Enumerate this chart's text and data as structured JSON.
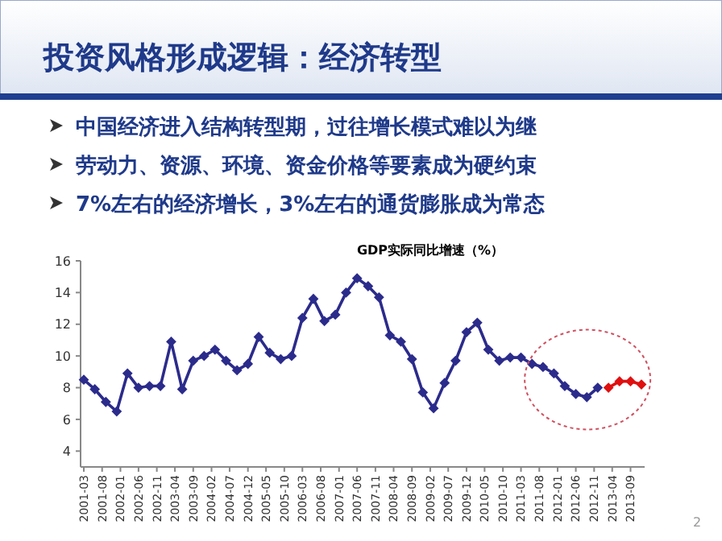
{
  "chart_data": {
    "type": "line",
    "title": "GDP实际同比增速（%）",
    "annotations": [
      "投资风格形成逻辑：经济转型",
      "中国经济进入结构转型期，过往增长模式难以为继",
      "劳动力、资源、环境、资金价格等要素成为硬约束",
      "7%左右的经济增长，3%左右的通货膨胀成为常态",
      "2"
    ],
    "series": [
      {
        "color": "#2b2b8c",
        "x": [
          "2001-03",
          "2001-06",
          "2001-09",
          "2001-12",
          "2002-03",
          "2002-06",
          "2002-09",
          "2002-12",
          "2003-03",
          "2003-06",
          "2003-09",
          "2003-12",
          "2004-03",
          "2004-06",
          "2004-09",
          "2004-12",
          "2005-03",
          "2005-06",
          "2005-09",
          "2005-12",
          "2006-03",
          "2006-06",
          "2006-09",
          "2006-12",
          "2007-03",
          "2007-06",
          "2007-09",
          "2007-12",
          "2008-03",
          "2008-06",
          "2008-09",
          "2008-12",
          "2009-03",
          "2009-06",
          "2009-09",
          "2009-12",
          "2010-03",
          "2010-06",
          "2010-09",
          "2010-12",
          "2011-03",
          "2011-06",
          "2011-09",
          "2011-12",
          "2012-03",
          "2012-06",
          "2012-09",
          "2012-12"
        ],
        "values": [
          8.5,
          7.9,
          7.1,
          6.5,
          8.9,
          8.0,
          8.1,
          8.1,
          10.9,
          7.9,
          9.7,
          10.0,
          10.4,
          9.7,
          9.1,
          9.5,
          11.2,
          10.2,
          9.8,
          10.0,
          12.4,
          13.6,
          12.2,
          12.6,
          14.0,
          14.9,
          14.4,
          13.7,
          11.3,
          10.9,
          9.8,
          7.7,
          6.7,
          8.3,
          9.7,
          11.5,
          12.1,
          10.4,
          9.7,
          9.9,
          9.9,
          9.5,
          9.3,
          8.9,
          8.1,
          7.6,
          7.4,
          8.0
        ]
      },
      {
        "color": "#e01010",
        "x": [
          "2013-03",
          "2013-06",
          "2013-09",
          "2013-12"
        ],
        "values": [
          8.0,
          8.4,
          8.4,
          8.2
        ]
      }
    ],
    "xlim": [
      "2001-03",
      "2013-12"
    ],
    "xticks": [
      "2001-03",
      "2001-08",
      "2002-01",
      "2002-06",
      "2002-11",
      "2003-04",
      "2003-09",
      "2004-02",
      "2004-07",
      "2004-12",
      "2005-05",
      "2005-10",
      "2006-03",
      "2006-08",
      "2007-01",
      "2007-06",
      "2007-11",
      "2008-04",
      "2008-09",
      "2009-02",
      "2009-07",
      "2009-12",
      "2010-05",
      "2010-10",
      "2011-03",
      "2011-08",
      "2012-01",
      "2012-06",
      "2012-11",
      "2013-04",
      "2013-09"
    ],
    "ylim": [
      3,
      16
    ],
    "yticks": [
      4,
      6,
      8,
      10,
      12,
      14,
      16
    ],
    "marker": "diamond",
    "line_style": "solid",
    "grid": false
  }
}
